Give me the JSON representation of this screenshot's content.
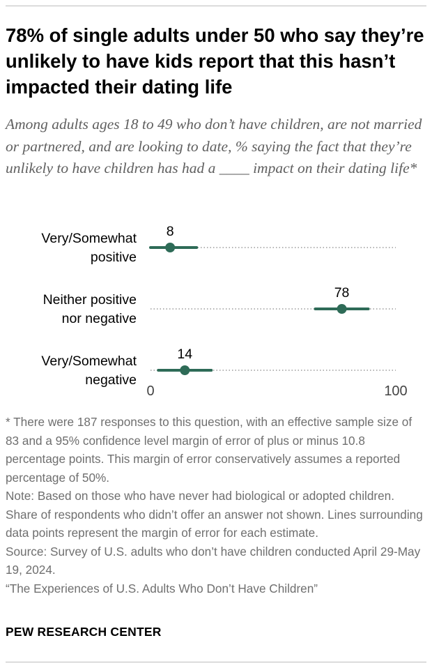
{
  "title": "78% of single adults under 50 who say they’re unlikely to have kids report that this hasn’t impacted their dating life",
  "subtitle": "Among adults ages 18 to 49 who don’t have children, are not married or partnered, and are looking to date, % saying the fact that they’re unlikely to have children has had a ____ impact on their dating life*",
  "chart_data": {
    "type": "dot",
    "categories": [
      [
        "Very/Somewhat",
        "positive"
      ],
      [
        "Neither positive",
        "nor negative"
      ],
      [
        "Very/Somewhat",
        "negative"
      ]
    ],
    "values": [
      8,
      78,
      14
    ],
    "margin_of_error": 10.8,
    "xlim": [
      0,
      100
    ],
    "x_ticks": [
      "0",
      "100"
    ],
    "colors": {
      "dot": "#2e6b57",
      "error_bar": "#2e6b57",
      "guide": "#9a9a9a"
    }
  },
  "notes": {
    "footnote": "* There were 187 responses to this question, with an effective sample size of 83 and a 95% confidence level margin of error of plus or minus 10.8 percentage points. This margin of error conservatively assumes a reported percentage of 50%.",
    "note": "Note: Based on those who have never had biological or adopted children. Share of respondents who didn’t offer an answer not shown. Lines surrounding data points represent the margin of error for each estimate.",
    "source": "Source: Survey of U.S. adults who don’t have children conducted April 29-May 19, 2024.",
    "report": "“The Experiences of U.S. Adults Who Don’t Have Children”"
  },
  "brand": "PEW RESEARCH CENTER"
}
